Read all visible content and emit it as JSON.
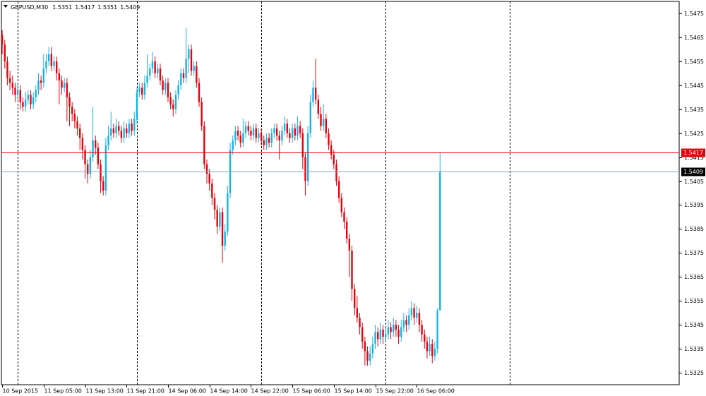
{
  "chart_data": {
    "type": "candlestick",
    "title": "GBPUSD,M30",
    "ohlc": [
      [
        1.5466,
        1.5468,
        1.5458,
        1.5462
      ],
      [
        1.5462,
        1.5464,
        1.5452,
        1.5455
      ],
      [
        1.5455,
        1.5457,
        1.5445,
        1.5448
      ],
      [
        1.5448,
        1.5451,
        1.5443,
        1.5446
      ],
      [
        1.5446,
        1.5449,
        1.5441,
        1.5444
      ],
      [
        1.5444,
        1.5446,
        1.5438,
        1.5441
      ],
      [
        1.5441,
        1.5446,
        1.5439,
        1.5443
      ],
      [
        1.5443,
        1.5445,
        1.5435,
        1.5438
      ],
      [
        1.5438,
        1.544,
        1.5434,
        1.5436
      ],
      [
        1.5436,
        1.5442,
        1.5434,
        1.5439
      ],
      [
        1.5439,
        1.5443,
        1.5437,
        1.5441
      ],
      [
        1.5441,
        1.5443,
        1.5435,
        1.5437
      ],
      [
        1.5437,
        1.5442,
        1.5435,
        1.544
      ],
      [
        1.544,
        1.5445,
        1.5438,
        1.5443
      ],
      [
        1.5443,
        1.545,
        1.5441,
        1.5447
      ],
      [
        1.5447,
        1.5449,
        1.5443,
        1.5446
      ],
      [
        1.5446,
        1.5458,
        1.5444,
        1.5452
      ],
      [
        1.5452,
        1.5458,
        1.545,
        1.5455
      ],
      [
        1.5455,
        1.5461,
        1.5453,
        1.5458
      ],
      [
        1.5458,
        1.5461,
        1.5451,
        1.5453
      ],
      [
        1.5453,
        1.5457,
        1.5451,
        1.5455
      ],
      [
        1.5455,
        1.5457,
        1.5447,
        1.545
      ],
      [
        1.545,
        1.5452,
        1.5437,
        1.5447
      ],
      [
        1.5447,
        1.5449,
        1.5441,
        1.5444
      ],
      [
        1.5444,
        1.5448,
        1.5442,
        1.5446
      ],
      [
        1.5446,
        1.5448,
        1.543,
        1.544
      ],
      [
        1.544,
        1.5442,
        1.5428,
        1.5436
      ],
      [
        1.5436,
        1.5438,
        1.543,
        1.5433
      ],
      [
        1.5433,
        1.5435,
        1.5427,
        1.543
      ],
      [
        1.543,
        1.5432,
        1.5424,
        1.5427
      ],
      [
        1.5427,
        1.5429,
        1.5418,
        1.5423
      ],
      [
        1.5423,
        1.5425,
        1.5414,
        1.5418
      ],
      [
        1.5418,
        1.542,
        1.5406,
        1.5412
      ],
      [
        1.5412,
        1.5414,
        1.5404,
        1.5408
      ],
      [
        1.5408,
        1.5418,
        1.5406,
        1.5415
      ],
      [
        1.5415,
        1.5436,
        1.5413,
        1.5422
      ],
      [
        1.5422,
        1.5424,
        1.5416,
        1.5419
      ],
      [
        1.5419,
        1.5421,
        1.541,
        1.5412
      ],
      [
        1.5412,
        1.5414,
        1.54,
        1.5405
      ],
      [
        1.5405,
        1.5407,
        1.5399,
        1.5401
      ],
      [
        1.5401,
        1.5423,
        1.5399,
        1.542
      ],
      [
        1.542,
        1.5428,
        1.5418,
        1.5424
      ],
      [
        1.5424,
        1.5434,
        1.5422,
        1.5427
      ],
      [
        1.5427,
        1.5429,
        1.5423,
        1.5425
      ],
      [
        1.5425,
        1.5431,
        1.5423,
        1.5428
      ],
      [
        1.5428,
        1.543,
        1.5424,
        1.5426
      ],
      [
        1.5426,
        1.5428,
        1.5421,
        1.5423
      ],
      [
        1.5423,
        1.543,
        1.5421,
        1.5427
      ],
      [
        1.5427,
        1.5429,
        1.5423,
        1.5425
      ],
      [
        1.5425,
        1.5431,
        1.5423,
        1.5429
      ],
      [
        1.5429,
        1.5431,
        1.5424,
        1.5426
      ],
      [
        1.5426,
        1.5434,
        1.5424,
        1.5431
      ],
      [
        1.5431,
        1.5444,
        1.5429,
        1.5442
      ],
      [
        1.5442,
        1.5446,
        1.544,
        1.5444
      ],
      [
        1.5444,
        1.5446,
        1.5439,
        1.5441
      ],
      [
        1.5441,
        1.5449,
        1.5439,
        1.5446
      ],
      [
        1.5446,
        1.5458,
        1.5444,
        1.5449
      ],
      [
        1.5449,
        1.5454,
        1.5447,
        1.5452
      ],
      [
        1.5452,
        1.5459,
        1.545,
        1.5455
      ],
      [
        1.5455,
        1.5457,
        1.5448,
        1.545
      ],
      [
        1.545,
        1.5454,
        1.5448,
        1.5452
      ],
      [
        1.5452,
        1.5454,
        1.5445,
        1.5447
      ],
      [
        1.5447,
        1.5449,
        1.5441,
        1.5443
      ],
      [
        1.5443,
        1.5448,
        1.5441,
        1.5446
      ],
      [
        1.5446,
        1.5448,
        1.5438,
        1.544
      ],
      [
        1.544,
        1.5442,
        1.5435,
        1.5437
      ],
      [
        1.5437,
        1.5439,
        1.5432,
        1.5435
      ],
      [
        1.5435,
        1.5443,
        1.5433,
        1.5441
      ],
      [
        1.5441,
        1.5447,
        1.5439,
        1.5445
      ],
      [
        1.5445,
        1.5452,
        1.5443,
        1.545
      ],
      [
        1.545,
        1.5452,
        1.5446,
        1.5448
      ],
      [
        1.5448,
        1.5469,
        1.5446,
        1.5456
      ],
      [
        1.5456,
        1.5462,
        1.545,
        1.546
      ],
      [
        1.546,
        1.5462,
        1.5449,
        1.5451
      ],
      [
        1.5451,
        1.5455,
        1.5449,
        1.5453
      ],
      [
        1.5453,
        1.5455,
        1.5444,
        1.5446
      ],
      [
        1.5446,
        1.5448,
        1.5436,
        1.5438
      ],
      [
        1.5438,
        1.544,
        1.5426,
        1.5428
      ],
      [
        1.5428,
        1.543,
        1.541,
        1.5412
      ],
      [
        1.5412,
        1.5414,
        1.5404,
        1.5408
      ],
      [
        1.5408,
        1.541,
        1.5401,
        1.5404
      ],
      [
        1.5404,
        1.5406,
        1.5395,
        1.5398
      ],
      [
        1.5398,
        1.54,
        1.5389,
        1.5393
      ],
      [
        1.5393,
        1.5395,
        1.5383,
        1.5386
      ],
      [
        1.5386,
        1.5394,
        1.5384,
        1.5392
      ],
      [
        1.5392,
        1.5394,
        1.5371,
        1.5378
      ],
      [
        1.5378,
        1.5387,
        1.5376,
        1.5384
      ],
      [
        1.5384,
        1.5403,
        1.5382,
        1.54
      ],
      [
        1.54,
        1.5421,
        1.5398,
        1.5418
      ],
      [
        1.5418,
        1.5424,
        1.5416,
        1.5422
      ],
      [
        1.5422,
        1.5428,
        1.542,
        1.5426
      ],
      [
        1.5426,
        1.5428,
        1.5422,
        1.5424
      ],
      [
        1.5424,
        1.5426,
        1.5419,
        1.5421
      ],
      [
        1.5421,
        1.5431,
        1.5419,
        1.5425
      ],
      [
        1.5425,
        1.543,
        1.5423,
        1.5428
      ],
      [
        1.5428,
        1.543,
        1.5424,
        1.5426
      ],
      [
        1.5426,
        1.5428,
        1.5422,
        1.5424
      ],
      [
        1.5424,
        1.5429,
        1.5422,
        1.5427
      ],
      [
        1.5427,
        1.5429,
        1.5421,
        1.5423
      ],
      [
        1.5423,
        1.5427,
        1.5421,
        1.5425
      ],
      [
        1.5425,
        1.5427,
        1.542,
        1.5422
      ],
      [
        1.5422,
        1.5424,
        1.5418,
        1.542
      ],
      [
        1.542,
        1.5425,
        1.5418,
        1.5423
      ],
      [
        1.5423,
        1.5425,
        1.5419,
        1.5421
      ],
      [
        1.5421,
        1.5427,
        1.5419,
        1.5425
      ],
      [
        1.5425,
        1.5429,
        1.5423,
        1.5427
      ],
      [
        1.5427,
        1.5429,
        1.5422,
        1.5424
      ],
      [
        1.5424,
        1.5426,
        1.5414,
        1.5422
      ],
      [
        1.5422,
        1.5428,
        1.542,
        1.5426
      ],
      [
        1.5426,
        1.5432,
        1.5424,
        1.5429
      ],
      [
        1.5429,
        1.5431,
        1.5423,
        1.5425
      ],
      [
        1.5425,
        1.5427,
        1.5421,
        1.5423
      ],
      [
        1.5423,
        1.5429,
        1.5421,
        1.5427
      ],
      [
        1.5427,
        1.5429,
        1.5422,
        1.5424
      ],
      [
        1.5424,
        1.5432,
        1.5422,
        1.5428
      ],
      [
        1.5428,
        1.543,
        1.5423,
        1.5425
      ],
      [
        1.5425,
        1.5427,
        1.541,
        1.5415
      ],
      [
        1.5415,
        1.5417,
        1.5399,
        1.5405
      ],
      [
        1.5405,
        1.5428,
        1.5403,
        1.5425
      ],
      [
        1.5425,
        1.5441,
        1.5423,
        1.5438
      ],
      [
        1.5438,
        1.5447,
        1.5436,
        1.5444
      ],
      [
        1.5444,
        1.5456,
        1.5437,
        1.5439
      ],
      [
        1.5439,
        1.5441,
        1.5431,
        1.5433
      ],
      [
        1.5433,
        1.5436,
        1.5426,
        1.5428
      ],
      [
        1.5428,
        1.5437,
        1.5426,
        1.5431
      ],
      [
        1.5431,
        1.5433,
        1.5423,
        1.5425
      ],
      [
        1.5425,
        1.5427,
        1.5418,
        1.542
      ],
      [
        1.542,
        1.5422,
        1.5414,
        1.5416
      ],
      [
        1.5416,
        1.5418,
        1.541,
        1.5412
      ],
      [
        1.5412,
        1.5414,
        1.5403,
        1.5405
      ],
      [
        1.5405,
        1.5407,
        1.5396,
        1.5398
      ],
      [
        1.5398,
        1.54,
        1.539,
        1.5392
      ],
      [
        1.5392,
        1.5394,
        1.5385,
        1.5388
      ],
      [
        1.5388,
        1.539,
        1.5379,
        1.5381
      ],
      [
        1.5381,
        1.5383,
        1.5365,
        1.5376
      ],
      [
        1.5376,
        1.5378,
        1.5355,
        1.536
      ],
      [
        1.536,
        1.5362,
        1.5349,
        1.5352
      ],
      [
        1.5352,
        1.5357,
        1.5346,
        1.5348
      ],
      [
        1.5348,
        1.535,
        1.5341,
        1.5344
      ],
      [
        1.5344,
        1.5346,
        1.5335,
        1.5338
      ],
      [
        1.5338,
        1.534,
        1.5328,
        1.5334
      ],
      [
        1.5334,
        1.5336,
        1.5328,
        1.533
      ],
      [
        1.533,
        1.5336,
        1.5328,
        1.5333
      ],
      [
        1.5333,
        1.534,
        1.5331,
        1.5337
      ],
      [
        1.5337,
        1.5345,
        1.5335,
        1.5342
      ],
      [
        1.5342,
        1.5344,
        1.5336,
        1.5339
      ],
      [
        1.5339,
        1.5346,
        1.5337,
        1.5343
      ],
      [
        1.5343,
        1.5345,
        1.5337,
        1.534
      ],
      [
        1.534,
        1.5344,
        1.5338,
        1.5341
      ],
      [
        1.5341,
        1.5347,
        1.5339,
        1.5344
      ],
      [
        1.5344,
        1.5346,
        1.5339,
        1.5342
      ],
      [
        1.5342,
        1.5348,
        1.534,
        1.5345
      ],
      [
        1.5345,
        1.5347,
        1.534,
        1.5343
      ],
      [
        1.5343,
        1.5345,
        1.5337,
        1.534
      ],
      [
        1.534,
        1.5347,
        1.5338,
        1.5344
      ],
      [
        1.5344,
        1.535,
        1.5342,
        1.5347
      ],
      [
        1.5347,
        1.5349,
        1.5342,
        1.5345
      ],
      [
        1.5345,
        1.5352,
        1.5343,
        1.5349
      ],
      [
        1.5349,
        1.5355,
        1.5347,
        1.5352
      ],
      [
        1.5352,
        1.5354,
        1.5345,
        1.5348
      ],
      [
        1.5348,
        1.5353,
        1.5346,
        1.535
      ],
      [
        1.535,
        1.5352,
        1.5342,
        1.5345
      ],
      [
        1.5345,
        1.5347,
        1.5338,
        1.5341
      ],
      [
        1.5341,
        1.5343,
        1.5335,
        1.5338
      ],
      [
        1.5338,
        1.534,
        1.5331,
        1.5334
      ],
      [
        1.5334,
        1.534,
        1.5332,
        1.5337
      ],
      [
        1.5337,
        1.5339,
        1.5329,
        1.5332
      ],
      [
        1.5332,
        1.5338,
        1.533,
        1.5335
      ],
      [
        1.5335,
        1.5352,
        1.5333,
        1.5351
      ],
      [
        1.5351,
        1.5417,
        1.5351,
        1.5409
      ]
    ],
    "up_color": "#12b4e6",
    "down_color": "#e8000b",
    "ylim": [
      1.532,
      1.548
    ],
    "yticks": [
      1.5475,
      1.5465,
      1.5455,
      1.5445,
      1.5435,
      1.5425,
      1.5415,
      1.5405,
      1.5395,
      1.5385,
      1.5375,
      1.5365,
      1.5355,
      1.5345,
      1.5335,
      1.5325
    ],
    "xlim": [
      -0.3,
      261.3
    ],
    "xticks": [
      {
        "value": 0,
        "label": "10 Sep 2015"
      },
      {
        "value": 16,
        "label": "11 Sep 05:00"
      },
      {
        "value": 32,
        "label": "11 Sep 13:00"
      },
      {
        "value": 48,
        "label": "11 Sep 21:00"
      },
      {
        "value": 64,
        "label": "14 Sep 06:00"
      },
      {
        "value": 80,
        "label": "14 Sep 14:00"
      },
      {
        "value": 96,
        "label": "14 Sep 22:00"
      },
      {
        "value": 112,
        "label": "15 Sep 06:00"
      },
      {
        "value": 128,
        "label": "15 Sep 14:00"
      },
      {
        "value": 144,
        "label": "15 Sep 22:00"
      },
      {
        "value": 160,
        "label": "16 Sep 06:00"
      }
    ],
    "period_separators": [
      6,
      52,
      100,
      148,
      196
    ],
    "ask_line": {
      "value": 1.5417,
      "color": "#e8000b"
    },
    "bid_line": {
      "value": 1.5409,
      "color": "#7fa3c4"
    },
    "grid": false
  }
}
